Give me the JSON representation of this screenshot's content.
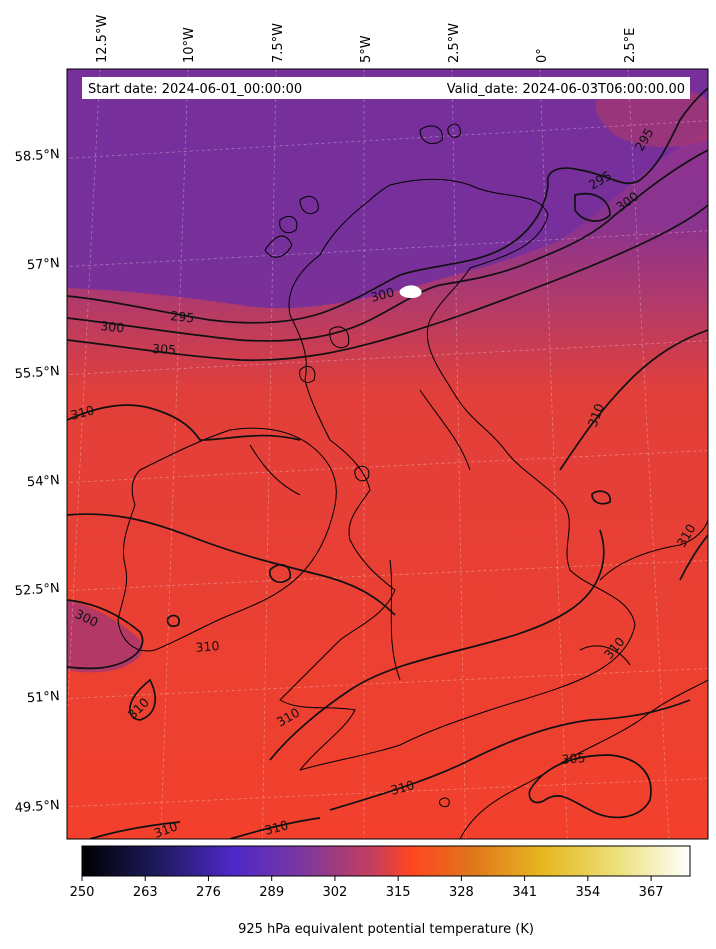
{
  "header": {
    "start_date": "Start date: 2024-06-01_00:00:00",
    "valid_date": "Valid_date: 2024-06-03T06:00:00.00"
  },
  "map": {
    "longitude_labels": [
      "12.5°W",
      "10°W",
      "7.5°W",
      "5°W",
      "2.5°W",
      "0°",
      "2.5°E"
    ],
    "latitude_labels": [
      "58.5°N",
      "57°N",
      "55.5°N",
      "54°N",
      "52.5°N",
      "51°N",
      "49.5°N"
    ],
    "contour_labels": [
      "295",
      "295",
      "295",
      "300",
      "300",
      "300",
      "300",
      "305",
      "305",
      "310",
      "310",
      "310",
      "310",
      "310",
      "310",
      "310",
      "310",
      "310",
      "310"
    ],
    "colors": {
      "cool_purple": "#6e2f98",
      "mid_purple": "#9a3282",
      "warm_red": "#f2402c",
      "contour": "#111111",
      "coastline": "#000000"
    }
  },
  "colorbar": {
    "ticks": [
      "250",
      "263",
      "276",
      "289",
      "302",
      "315",
      "328",
      "341",
      "354",
      "367"
    ],
    "range": [
      250,
      375
    ],
    "colormap": "CMRmap",
    "title": "925 hPa equivalent potential temperature (K)"
  }
}
